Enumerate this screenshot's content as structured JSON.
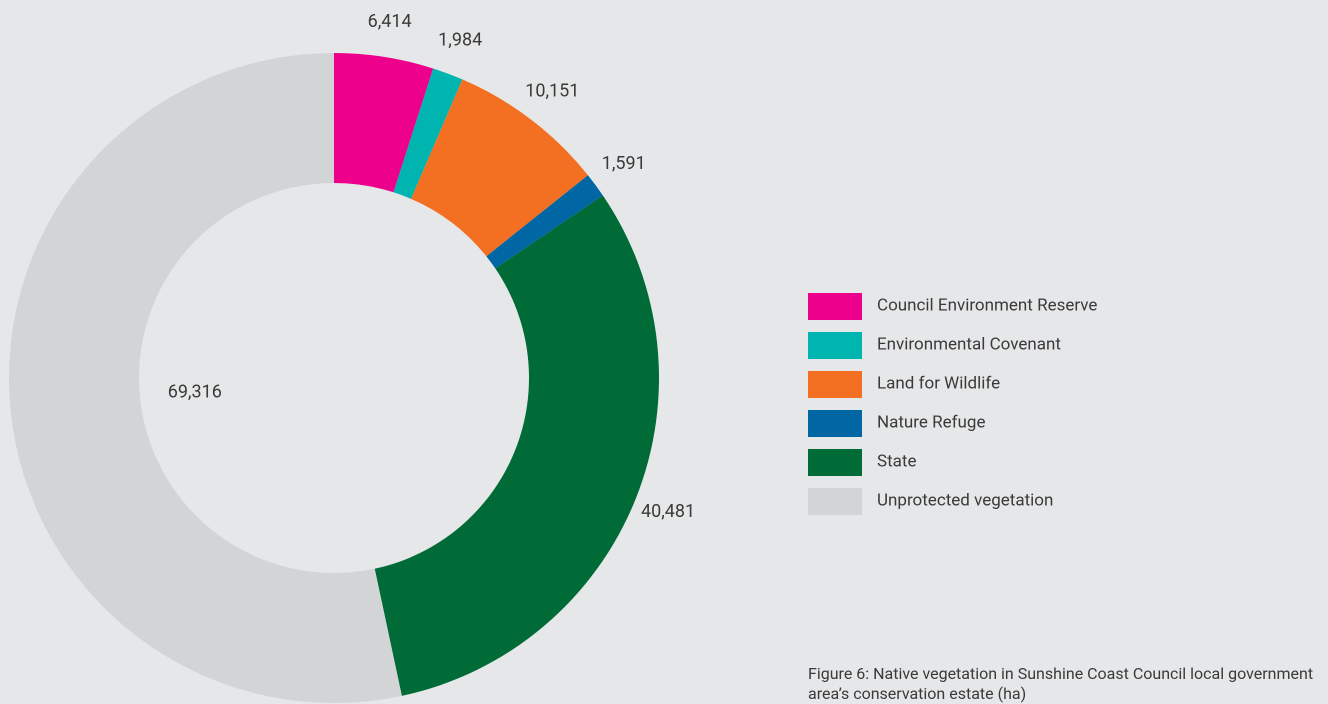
{
  "chart_data": {
    "type": "donut",
    "categories": [
      "Council Environment Reserve",
      "Environmental Covenant",
      "Land for Wildlife",
      "Nature Refuge",
      "State",
      "Unprotected vegetation"
    ],
    "values": [
      6414,
      1984,
      10151,
      1591,
      40481,
      69316
    ],
    "value_labels": [
      "6,414",
      "1,984",
      "10,151",
      "1,591",
      "40,481",
      "69,316"
    ],
    "colors": [
      "#ec008c",
      "#00b5b0",
      "#f36f21",
      "#0066a4",
      "#006b36",
      "#d3d4d6"
    ],
    "caption": "Figure 6: Native vegetation in Sunshine Coast Council local government area’s conservation estate (ha)"
  }
}
